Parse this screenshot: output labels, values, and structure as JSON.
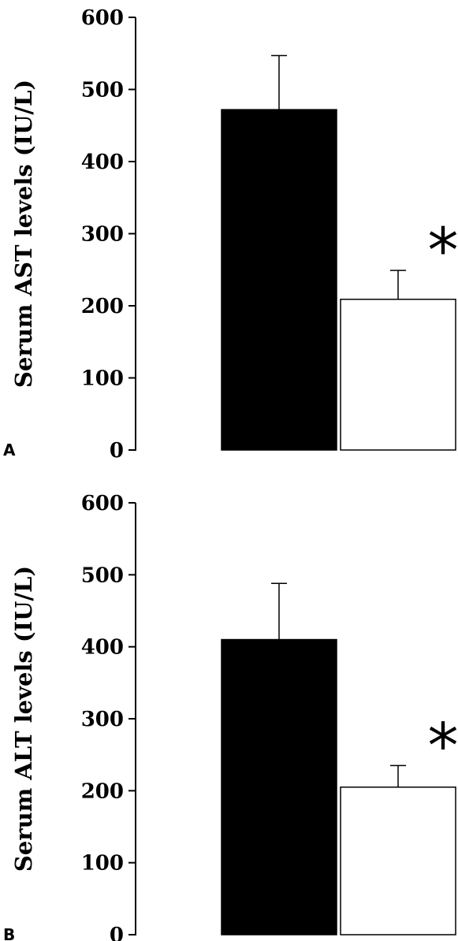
{
  "chart_data": [
    {
      "type": "bar",
      "panel_label": "A",
      "ylabel": "Serum AST levels (IU/L)",
      "ylim": [
        0,
        600
      ],
      "yticks": [
        0,
        100,
        200,
        300,
        400,
        500,
        600
      ],
      "categories": [
        "",
        ""
      ],
      "values": [
        472,
        209
      ],
      "errors": [
        75,
        40
      ],
      "bar_colors": [
        "#000000",
        "#ffffff"
      ],
      "annotation": "*"
    },
    {
      "type": "bar",
      "panel_label": "B",
      "ylabel": "Serum ALT levels (IU/L)",
      "ylim": [
        0,
        600
      ],
      "yticks": [
        0,
        100,
        200,
        300,
        400,
        500,
        600
      ],
      "categories": [
        "",
        ""
      ],
      "values": [
        410,
        205
      ],
      "errors": [
        78,
        30
      ],
      "bar_colors": [
        "#000000",
        "#ffffff"
      ],
      "annotation": "*"
    }
  ]
}
